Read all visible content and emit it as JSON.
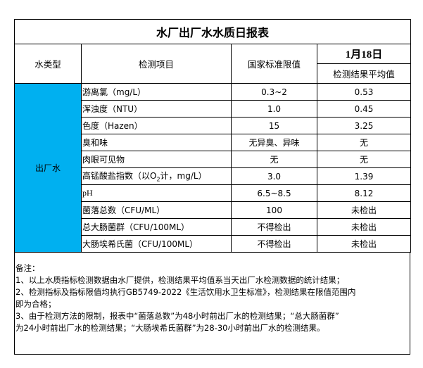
{
  "title": "水厂出厂水水质日报表",
  "headers": {
    "water_type": "水类型",
    "item": "检测项目",
    "limit": "国家标准限值",
    "date": "1月18日",
    "result": "检测结果平均值"
  },
  "water_type_value": "出厂水",
  "accent_color": "#00b0f0",
  "rows": [
    {
      "item": "游离氯（mg/L）",
      "limit": "0.3~2",
      "result": "0.53"
    },
    {
      "item": "浑浊度（NTU）",
      "limit": "1.0",
      "result": "0.45"
    },
    {
      "item": "色度（Hazen）",
      "limit": "15",
      "result": "3.25"
    },
    {
      "item": "臭和味",
      "limit": "无异臭、异味",
      "result": "无"
    },
    {
      "item": "肉眼可见物",
      "limit": "无",
      "result": "无"
    },
    {
      "item_pre": "高锰酸盐指数（以O",
      "item_sub": "2",
      "item_post": "计，mg/L）",
      "limit": "3.0",
      "result": "1.39"
    },
    {
      "item": "pH",
      "limit": "6.5~8.5",
      "result": "8.12"
    },
    {
      "item": "菌落总数（CFU/ML）",
      "limit": "100",
      "result": "未检出"
    },
    {
      "item": "总大肠菌群（CFU/100ML）",
      "limit": "不得检出",
      "result": "未检出"
    },
    {
      "item": "大肠埃希氏菌（CFU/100ML）",
      "limit": "不得检出",
      "result": "未检出"
    }
  ],
  "notes": [
    "备注：",
    "1、以上水质指标检测数据由水厂提供，检测结果平均值系当天出厂水检测数据的统计结果；",
    "2、检测指标及指标限值均执行GB5749-2022《生活饮用水卫生标准》，检测结果在限值范围内",
    "即为合格；",
    "3、由于检测方法的限制，报表中“菌落总数”为48小时前出厂水的检测结果；“总大肠菌群”",
    "为24小时前出厂水的检测结果；“大肠埃希氏菌群”为28-30小时前出厂水的检测结果。"
  ]
}
